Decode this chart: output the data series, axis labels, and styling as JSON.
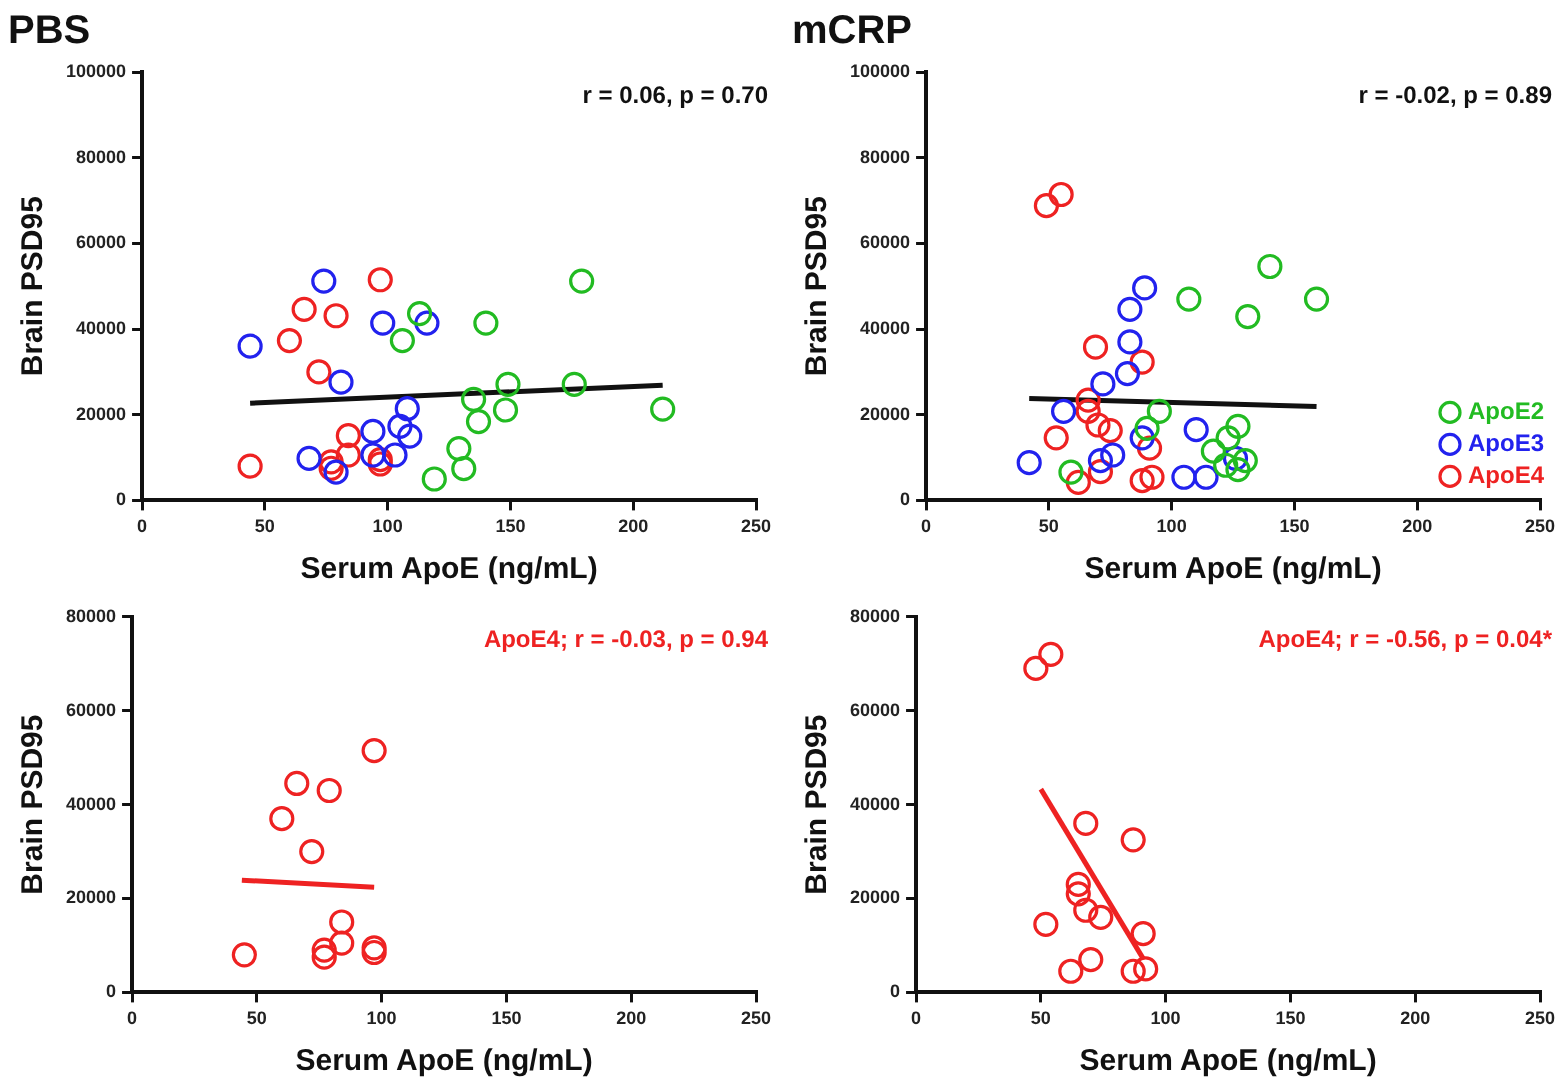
{
  "chart_data": [
    {
      "type": "scatter",
      "title": "PBS",
      "xlabel": "Serum ApoE (ng/mL)",
      "ylabel": "Brain PSD95",
      "xlim": [
        0,
        250
      ],
      "xticks": [
        0,
        50,
        100,
        150,
        200,
        250
      ],
      "ylim": [
        0,
        100000
      ],
      "yticks": [
        0,
        20000,
        40000,
        60000,
        80000,
        100000
      ],
      "grid": false,
      "legend": false,
      "annotations": [
        "r = 0.06, p = 0.70"
      ],
      "series": [
        {
          "marker": "circle",
          "color": "#22bb22",
          "x": [
            113,
            106,
            140,
            179,
            149,
            176,
            135,
            137,
            148,
            212,
            129,
            131,
            119
          ],
          "values": [
            43600,
            37300,
            41400,
            51200,
            27100,
            27100,
            23600,
            18400,
            21100,
            21300,
            12100,
            7400,
            5000
          ]
        },
        {
          "marker": "circle",
          "color": "#2222ee",
          "x": [
            44,
            74,
            81,
            98,
            116,
            108,
            105,
            109,
            94,
            94,
            103,
            68,
            79
          ],
          "values": [
            36000,
            51200,
            27600,
            41400,
            41400,
            21400,
            17300,
            15000,
            16100,
            10600,
            10600,
            9800,
            6600
          ]
        },
        {
          "marker": "circle",
          "color": "#ee2222",
          "x": [
            44,
            60,
            66,
            72,
            79,
            97,
            84,
            84,
            77,
            77,
            97,
            97
          ],
          "values": [
            8000,
            37300,
            44600,
            30000,
            43100,
            51500,
            15100,
            10600,
            9000,
            7500,
            9500,
            8500
          ]
        },
        {
          "type": "line",
          "marker": "none",
          "color": "#111111",
          "x": [
            44,
            212
          ],
          "values": [
            22700,
            26900
          ]
        }
      ]
    },
    {
      "type": "scatter",
      "title": "mCRP",
      "xlabel": "Serum ApoE (ng/mL)",
      "ylabel": "Brain PSD95",
      "xlim": [
        0,
        250
      ],
      "xticks": [
        0,
        50,
        100,
        150,
        200,
        250
      ],
      "ylim": [
        0,
        100000
      ],
      "yticks": [
        0,
        20000,
        40000,
        60000,
        80000,
        100000
      ],
      "grid": false,
      "legend": "bottom right",
      "annotations": [
        "r = -0.02, p = 0.89"
      ],
      "series": [
        {
          "name": "ApoE2",
          "marker": "circle",
          "color": "#22bb22",
          "x": [
            59,
            95,
            90,
            107,
            140,
            131,
            159,
            127,
            123,
            117,
            122,
            127,
            130
          ],
          "values": [
            6600,
            20800,
            16800,
            47000,
            54600,
            42900,
            47000,
            17300,
            14600,
            11500,
            8200,
            7200,
            9300
          ]
        },
        {
          "name": "ApoE3",
          "marker": "circle",
          "color": "#2222ee",
          "x": [
            42,
            56,
            71,
            76,
            72,
            82,
            83,
            83,
            89,
            88,
            110,
            105,
            114,
            126
          ],
          "values": [
            8800,
            20800,
            9300,
            10600,
            27200,
            29600,
            37000,
            44600,
            49600,
            14600,
            16500,
            5400,
            5400,
            9800
          ]
        },
        {
          "name": "ApoE4",
          "marker": "circle",
          "color": "#ee2222",
          "x": [
            49,
            55,
            69,
            88,
            66,
            66,
            70,
            75,
            53,
            91,
            71,
            62,
            88,
            92
          ],
          "values": [
            68800,
            71400,
            35800,
            32300,
            23400,
            20800,
            17600,
            16300,
            14600,
            12200,
            6700,
            4200,
            4600,
            5400
          ]
        },
        {
          "type": "line",
          "marker": "none",
          "color": "#111111",
          "x": [
            42,
            159
          ],
          "values": [
            23800,
            21900
          ]
        }
      ]
    },
    {
      "type": "scatter",
      "xlabel": "Serum ApoE (ng/mL)",
      "ylabel": "Brain PSD95",
      "xlim": [
        0,
        250
      ],
      "xticks": [
        0,
        50,
        100,
        150,
        200,
        250
      ],
      "ylim": [
        0,
        80000
      ],
      "yticks": [
        0,
        20000,
        40000,
        60000,
        80000
      ],
      "grid": false,
      "legend": false,
      "annotations": [
        "ApoE4; r = -0.03, p = 0.94"
      ],
      "series": [
        {
          "marker": "circle",
          "color": "#ee2222",
          "x": [
            45,
            60,
            66,
            72,
            79,
            97,
            84,
            84,
            77,
            77,
            97,
            97
          ],
          "values": [
            8000,
            37000,
            44500,
            30000,
            43000,
            51500,
            15000,
            10500,
            9000,
            7500,
            9500,
            8500
          ]
        },
        {
          "type": "line",
          "marker": "none",
          "color": "#ee2222",
          "x": [
            44,
            97
          ],
          "values": [
            23900,
            22400
          ]
        }
      ]
    },
    {
      "type": "scatter",
      "xlabel": "Serum ApoE (ng/mL)",
      "ylabel": "Brain PSD95",
      "xlim": [
        0,
        250
      ],
      "xticks": [
        0,
        50,
        100,
        150,
        200,
        250
      ],
      "ylim": [
        0,
        80000
      ],
      "yticks": [
        0,
        20000,
        40000,
        60000,
        80000
      ],
      "grid": false,
      "legend": false,
      "annotations": [
        "ApoE4; r = -0.56, p = 0.04*"
      ],
      "series": [
        {
          "marker": "circle",
          "color": "#ee2222",
          "x": [
            48,
            54,
            68,
            87,
            65,
            65,
            68,
            74,
            52,
            91,
            70,
            62,
            87,
            92
          ],
          "values": [
            69000,
            72000,
            36000,
            32500,
            23000,
            21000,
            17500,
            16000,
            14500,
            12500,
            7000,
            4500,
            4500,
            5000
          ]
        },
        {
          "type": "line",
          "marker": "none",
          "color": "#ee2222",
          "x": [
            50,
            91
          ],
          "values": [
            43300,
            7200
          ]
        }
      ]
    }
  ]
}
